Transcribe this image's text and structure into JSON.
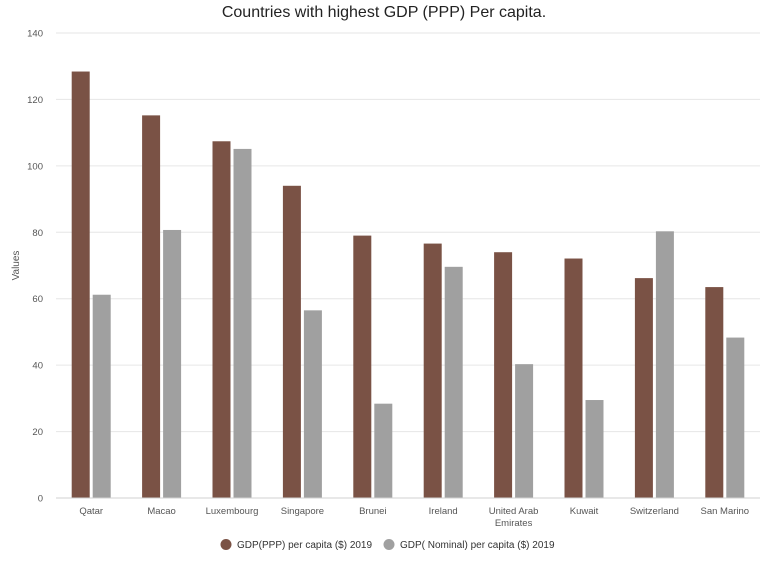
{
  "chart_data": {
    "type": "bar",
    "title": "Countries with highest GDP (PPP) Per capita.",
    "xlabel": "",
    "ylabel": "Values",
    "ylim": [
      0,
      140
    ],
    "yticks": [
      0,
      20,
      40,
      60,
      80,
      100,
      120,
      140
    ],
    "grid": true,
    "legend_position": "bottom",
    "categories": [
      "Qatar",
      "Macao",
      "Luxembourg",
      "Singapore",
      "Brunei",
      "Ireland",
      "United Arab Emirates",
      "Kuwait",
      "Switzerland",
      "San Marino"
    ],
    "series": [
      {
        "name": "GDP(PPP) per capita ($) 2019",
        "color": "#7a5245",
        "values": [
          128.4,
          115.2,
          107.4,
          94.0,
          79.0,
          76.6,
          74.0,
          72.1,
          66.2,
          63.5
        ]
      },
      {
        "name": "GDP( Nominal) per capita ($) 2019",
        "color": "#a0a0a0",
        "values": [
          61.2,
          80.7,
          105.1,
          56.5,
          28.4,
          69.6,
          40.3,
          29.5,
          80.3,
          48.3
        ]
      }
    ]
  }
}
